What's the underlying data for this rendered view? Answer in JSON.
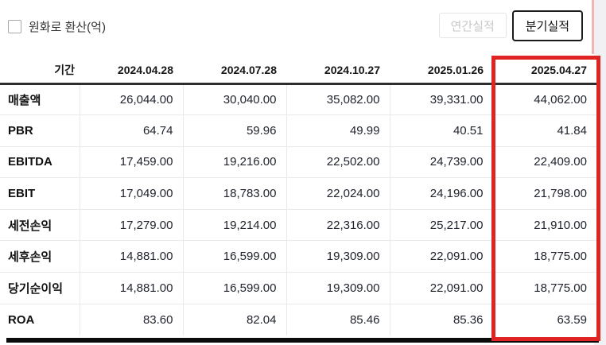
{
  "controls": {
    "checkbox_label": "원화로 환산(억)",
    "checkbox_checked": false,
    "buttons": [
      {
        "label": "연간실적",
        "active": false
      },
      {
        "label": "분기실적",
        "active": true
      }
    ]
  },
  "table": {
    "corner_header": "기간",
    "columns": [
      "2024.04.28",
      "2024.07.28",
      "2024.10.27",
      "2025.01.26",
      "2025.04.27"
    ],
    "highlighted_column": "2025.04.27",
    "rows": [
      {
        "label": "매출액",
        "values": [
          "26,044.00",
          "30,040.00",
          "35,082.00",
          "39,331.00",
          "44,062.00"
        ]
      },
      {
        "label": "PBR",
        "values": [
          "64.74",
          "59.96",
          "49.99",
          "40.51",
          "41.84"
        ]
      },
      {
        "label": "EBITDA",
        "values": [
          "17,459.00",
          "19,216.00",
          "22,502.00",
          "24,739.00",
          "22,409.00"
        ]
      },
      {
        "label": "EBIT",
        "values": [
          "17,049.00",
          "18,783.00",
          "22,024.00",
          "24,196.00",
          "21,798.00"
        ]
      },
      {
        "label": "세전손익",
        "values": [
          "17,279.00",
          "19,214.00",
          "22,316.00",
          "25,217.00",
          "21,910.00"
        ]
      },
      {
        "label": "세후손익",
        "values": [
          "14,881.00",
          "16,599.00",
          "19,309.00",
          "22,091.00",
          "18,775.00"
        ]
      },
      {
        "label": "당기순이익",
        "values": [
          "14,881.00",
          "16,599.00",
          "19,309.00",
          "22,091.00",
          "18,775.00"
        ]
      },
      {
        "label": "ROA",
        "values": [
          "83.60",
          "82.04",
          "85.46",
          "85.36",
          "63.59"
        ]
      }
    ]
  },
  "colors": {
    "highlight_border": "#e02424",
    "active_button_border": "#1b1b1b",
    "inactive_button_text": "#c7c7c7",
    "header_rule": "#2d2d2d",
    "bottom_rule": "#0b0b0b"
  }
}
